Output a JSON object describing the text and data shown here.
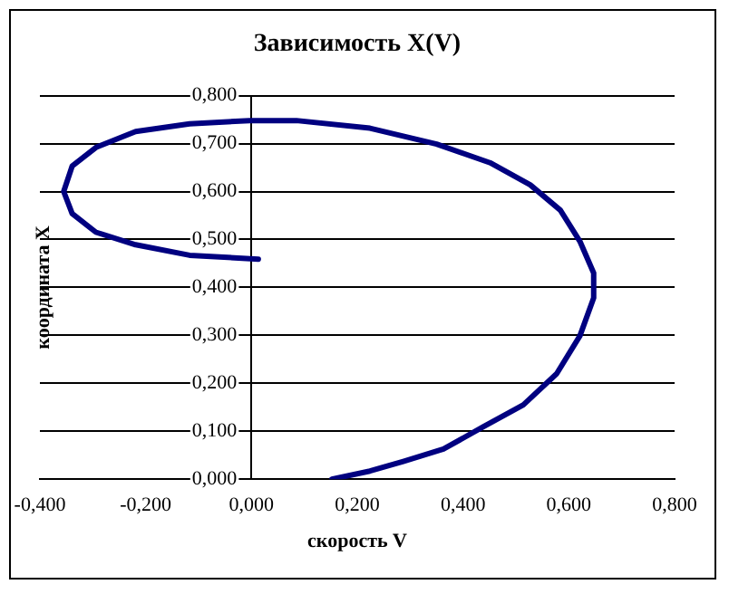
{
  "chart_data": {
    "type": "line",
    "title": "Зависимость X(V)",
    "xlabel": "скорость V",
    "ylabel": "координата X",
    "xlim": [
      -0.4,
      0.8
    ],
    "xticks": [
      {
        "value": -0.4,
        "label": "-0,400"
      },
      {
        "value": -0.2,
        "label": "-0,200"
      },
      {
        "value": 0,
        "label": "0,000"
      },
      {
        "value": 0.2,
        "label": "0,200"
      },
      {
        "value": 0.4,
        "label": "0,400"
      },
      {
        "value": 0.6,
        "label": "0,600"
      },
      {
        "value": 0.8,
        "label": "0,800"
      }
    ],
    "ylim": [
      0,
      0.8
    ],
    "yticks": [
      {
        "value": 0,
        "label": "0,000"
      },
      {
        "value": 0.1,
        "label": "0,100"
      },
      {
        "value": 0.2,
        "label": "0,200"
      },
      {
        "value": 0.3,
        "label": "0,300"
      },
      {
        "value": 0.4,
        "label": "0,400"
      },
      {
        "value": 0.5,
        "label": "0,500"
      },
      {
        "value": 0.6,
        "label": "0,600"
      },
      {
        "value": 0.7,
        "label": "0,700"
      },
      {
        "value": 0.8,
        "label": "0,800"
      }
    ],
    "grid": "y",
    "legend": false,
    "marker": "none",
    "line_style": "solid",
    "series": [
      {
        "color": "#000080",
        "x": [
          0.152,
          0.224,
          0.287,
          0.363,
          0.438,
          0.514,
          0.577,
          0.621,
          0.647,
          0.647,
          0.621,
          0.584,
          0.527,
          0.451,
          0.35,
          0.224,
          0.085,
          -0.004,
          -0.117,
          -0.219,
          -0.294,
          -0.339,
          -0.355,
          -0.339,
          -0.294,
          -0.219,
          -0.117,
          0.013
        ],
        "values": [
          0,
          0.017,
          0.037,
          0.063,
          0.109,
          0.155,
          0.22,
          0.299,
          0.378,
          0.43,
          0.496,
          0.561,
          0.614,
          0.66,
          0.699,
          0.732,
          0.748,
          0.748,
          0.741,
          0.725,
          0.692,
          0.653,
          0.6,
          0.554,
          0.515,
          0.489,
          0.467,
          0.459
        ]
      }
    ]
  }
}
